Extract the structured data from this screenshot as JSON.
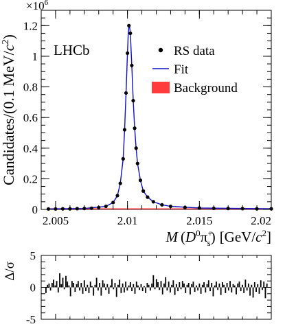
{
  "chart_data": [
    {
      "type": "scatter",
      "title": "",
      "annotation": "LHCb",
      "xlabel_html": "M (D0π+s) [GeV/c2]",
      "xlabel": {
        "main": "M",
        "open": "(",
        "particle1": "D",
        "sup1": "0",
        "particle2": "π",
        "sup2": "+",
        "sub2": "s",
        "close": ")",
        "unit": "[GeV/",
        "unit_c": "c",
        "unit_exp": "2",
        "unit_close": "]"
      },
      "ylabel": {
        "main": "Candidates/(0.1 MeV/",
        "c": "c",
        "exp": "2",
        "close": ")"
      },
      "y_multiplier": {
        "base": "×10",
        "exp": "6"
      },
      "xlim": [
        2.004,
        2.02
      ],
      "ylim": [
        0,
        1.3
      ],
      "x_ticks": [
        2.005,
        2.01,
        2.015,
        2.02
      ],
      "x_tick_labels": [
        "2.005",
        "2.01",
        "2.015",
        "2.02"
      ],
      "y_ticks": [
        0,
        0.2,
        0.4,
        0.6,
        0.8,
        1.0,
        1.2
      ],
      "y_tick_labels": [
        "0",
        "0.2",
        "0.4",
        "0.6",
        "0.8",
        "1",
        "1.2"
      ],
      "grid": false,
      "legend_position": "top-right",
      "legend": [
        {
          "label": "RS data",
          "marker": "dot",
          "color": "#000000"
        },
        {
          "label": "Fit",
          "marker": "line",
          "color": "#1010c0"
        },
        {
          "label": "Background",
          "marker": "box",
          "color": "#ff3b3b"
        }
      ],
      "series": [
        {
          "name": "RS data",
          "marker": "dot",
          "x": [
            2.0045,
            2.005,
            2.0055,
            2.006,
            2.0065,
            2.007,
            2.0075,
            2.008,
            2.0085,
            2.009,
            2.0093,
            2.0095,
            2.0097,
            2.0098,
            2.0099,
            2.01,
            2.0101,
            2.0102,
            2.0103,
            2.0104,
            2.0105,
            2.0106,
            2.0107,
            2.0109,
            2.0111,
            2.0114,
            2.0118,
            2.0124,
            2.013,
            2.014,
            2.015,
            2.016,
            2.017,
            2.018,
            2.019,
            2.02
          ],
          "y": [
            0.003,
            0.003,
            0.004,
            0.004,
            0.005,
            0.006,
            0.008,
            0.012,
            0.02,
            0.045,
            0.09,
            0.17,
            0.33,
            0.52,
            0.76,
            1.02,
            1.2,
            1.15,
            0.94,
            0.71,
            0.53,
            0.4,
            0.3,
            0.19,
            0.12,
            0.08,
            0.05,
            0.03,
            0.02,
            0.013,
            0.009,
            0.007,
            0.006,
            0.005,
            0.004,
            0.004
          ]
        },
        {
          "name": "Fit",
          "marker": "line",
          "x": [
            2.0045,
            2.007,
            2.0085,
            2.009,
            2.0093,
            2.0095,
            2.0097,
            2.0098,
            2.0099,
            2.01,
            2.01005,
            2.0101,
            2.01015,
            2.0102,
            2.0103,
            2.0104,
            2.0105,
            2.0106,
            2.0107,
            2.0109,
            2.0111,
            2.0114,
            2.0118,
            2.0124,
            2.013,
            2.015,
            2.02
          ],
          "y": [
            0.003,
            0.006,
            0.02,
            0.045,
            0.09,
            0.17,
            0.33,
            0.52,
            0.76,
            1.02,
            1.14,
            1.2,
            1.19,
            1.15,
            0.94,
            0.71,
            0.53,
            0.4,
            0.3,
            0.19,
            0.12,
            0.08,
            0.05,
            0.03,
            0.02,
            0.009,
            0.004
          ]
        },
        {
          "name": "Background",
          "marker": "area",
          "x": [
            2.0045,
            2.02
          ],
          "y": [
            0.003,
            0.003
          ]
        }
      ]
    },
    {
      "type": "bar",
      "title": "",
      "ylabel": "Δ/σ",
      "xlim": [
        2.004,
        2.02
      ],
      "ylim": [
        -5,
        5
      ],
      "y_ticks": [
        -5,
        0,
        5
      ],
      "y_tick_labels": [
        "-5",
        "0",
        "5"
      ],
      "grid": false,
      "series": [
        {
          "name": "pull",
          "values": [
            -0.9,
            0.4,
            0.6,
            -0.5,
            0.7,
            1.2,
            0.3,
            1.0,
            -0.8,
            2.2,
            0.5,
            1.5,
            -0.3,
            1.8,
            0.9,
            0.3,
            -1.4,
            1.0,
            0.7,
            -0.7,
            0.5,
            1.0,
            -0.5,
            0.7,
            -1.0,
            1.1,
            -0.6,
            0.4,
            -0.9,
            0.9,
            0.2,
            -1.3,
            0.4,
            1.5,
            -0.5,
            0.7,
            -1.3,
            1.1,
            0.6,
            -0.4,
            0.5,
            -1.0,
            0.3,
            1.3,
            -0.3,
            0.7,
            -1.5,
            0.4,
            1.2,
            -0.9,
            0.6,
            -0.8,
            0.9,
            -0.5,
            0.3,
            0.8,
            -0.6,
            0.5,
            -1.0,
            0.9,
            0.3,
            -0.4,
            0.5,
            -0.6,
            0.2,
            -0.9,
            0.7,
            0.4,
            -0.5,
            0.6,
            1.9,
            -0.3,
            1.3,
            0.8,
            -0.4,
            1.0,
            -1.1,
            0.6,
            1.6,
            -0.5,
            0.9,
            -0.8,
            0.4,
            1.1,
            -1.2,
            0.5,
            -0.6,
            0.8,
            -0.3,
            1.0,
            0.6,
            -0.9,
            0.4,
            0.7,
            -1.1,
            0.5,
            0.9,
            -0.7,
            0.3,
            -0.5,
            0.6,
            -1.0,
            0.4,
            0.8,
            -0.8,
            0.5,
            1.1,
            -0.6,
            0.7,
            -1.4,
            0.3,
            0.9,
            -0.4,
            0.6,
            -1.2,
            0.8,
            0.4,
            -0.9,
            0.7,
            -0.5,
            1.0,
            -0.8,
            0.5,
            0.3,
            -1.1,
            0.6,
            0.9,
            -0.6,
            0.4,
            -0.9,
            1.2,
            -0.5,
            0.6,
            -1.3,
            0.4,
            -1.6,
            0.8,
            -0.7,
            0.5,
            -1.0,
            1.1,
            -0.4,
            0.9,
            -1.7,
            0.6
          ]
        }
      ]
    }
  ]
}
